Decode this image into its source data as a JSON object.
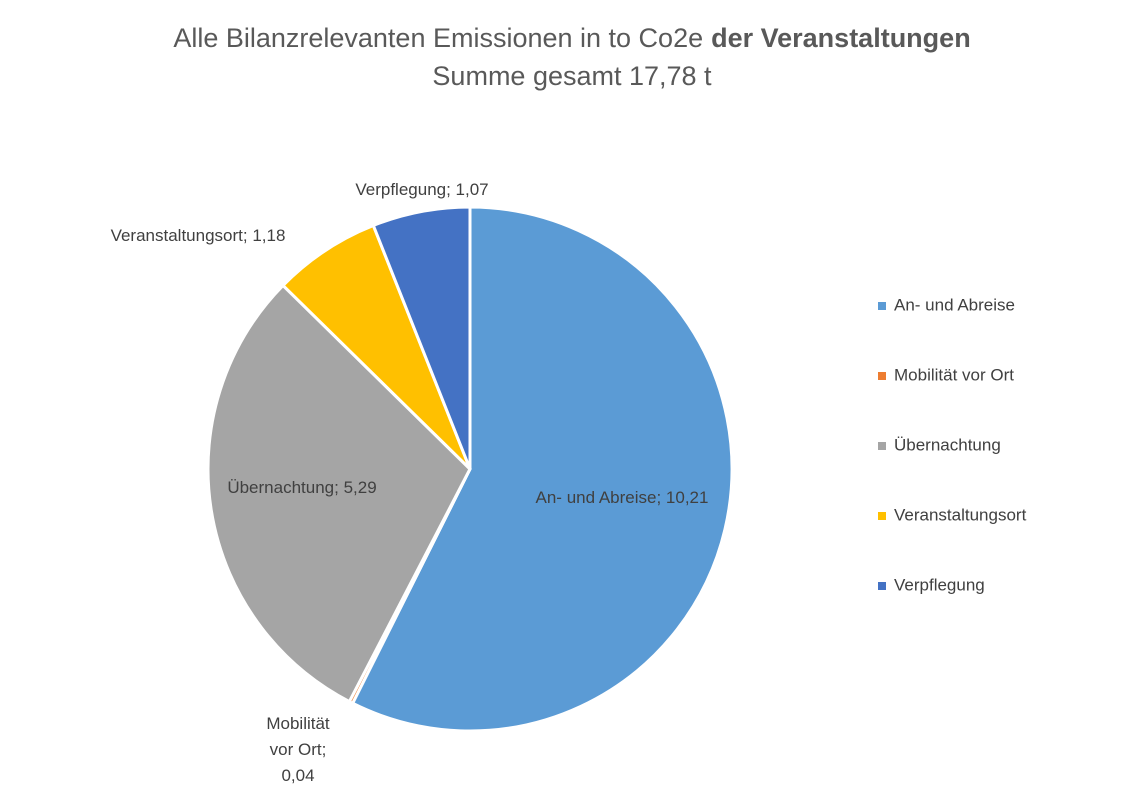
{
  "chart_data": {
    "type": "pie",
    "title": "Alle Bilanzrelevanten Emissionen in to Co2e",
    "title_bold": "der Veranstaltungen",
    "subtitle": "Summe gesamt 17,78 t",
    "categories": [
      "An- und Abreise",
      "Mobilität vor Ort",
      "Übernachtung",
      "Veranstaltungsort",
      "Verpflegung"
    ],
    "values": [
      10.21,
      0.04,
      5.29,
      1.18,
      1.07
    ],
    "value_labels": [
      "An- und Abreise; 10,21",
      "Mobilität vor Ort; 0,04",
      "Übernachtung; 5,29",
      "Veranstaltungsort; 1,18",
      "Verpflegung; 1,07"
    ],
    "colors": [
      "#5b9bd5",
      "#ed7d31",
      "#a5a5a5",
      "#ffc000",
      "#4472c4"
    ],
    "legend": "right"
  }
}
